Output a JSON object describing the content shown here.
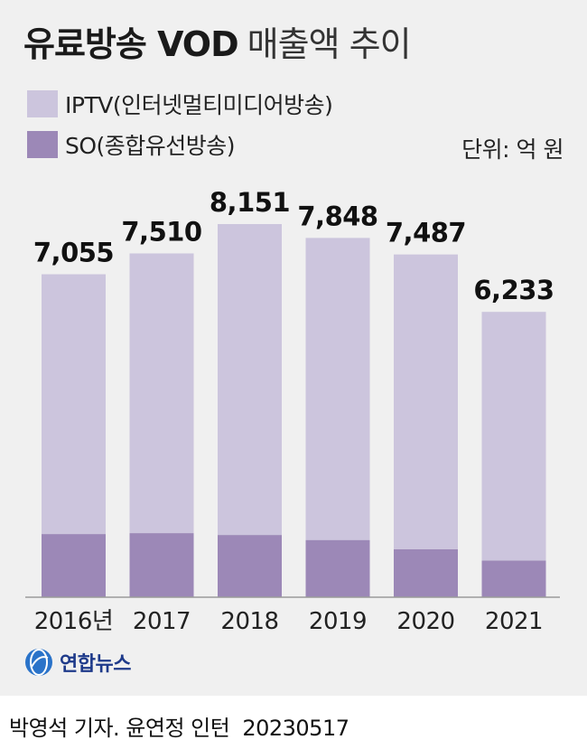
{
  "header": {
    "title_bold": "유료방송 VOD",
    "title_light": "매출액 추이"
  },
  "legend": [
    {
      "label": "IPTV(인터넷멀티미디어방송)",
      "color": "#ccc5dd"
    },
    {
      "label": "SO(종합유선방송)",
      "color": "#9c88b7"
    }
  ],
  "unit": "단위: 억 원",
  "chart_data": {
    "type": "bar",
    "stacked": true,
    "categories": [
      "2016년",
      "2017",
      "2018",
      "2019",
      "2020",
      "2021"
    ],
    "totals_labels": [
      "7,055",
      "7,510",
      "8,151",
      "7,848",
      "7,487",
      "6,233"
    ],
    "totals": [
      7055,
      7510,
      8151,
      7848,
      7487,
      6233
    ],
    "series": [
      {
        "name": "SO(종합유선방송)",
        "values": [
          1380,
          1400,
          1360,
          1250,
          1050,
          800
        ],
        "color": "#9c88b7"
      },
      {
        "name": "IPTV(인터넷멀티미디어방송)",
        "values": [
          5675,
          6110,
          6791,
          6598,
          6437,
          5433
        ],
        "color": "#ccc5dd"
      }
    ],
    "ylim": [
      0,
      8151
    ],
    "legend_position": "top-left"
  },
  "footer": {
    "logo_text": "연합뉴스",
    "credit": "박영석 기자. 윤연정 인턴",
    "date": "20230517"
  }
}
